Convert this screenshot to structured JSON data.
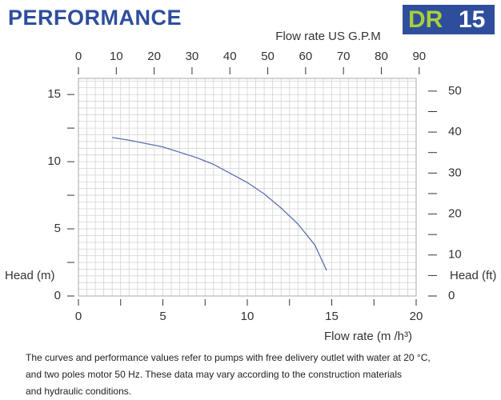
{
  "header": {
    "title": "PERFORMANCE",
    "badge_prefix": "DR",
    "badge_number": "15"
  },
  "chart_data": {
    "type": "line",
    "x": [
      2,
      3,
      5,
      7,
      8,
      10,
      11,
      12,
      13,
      14,
      14.7
    ],
    "values": [
      11.8,
      11.6,
      11.1,
      10.3,
      9.8,
      8.45,
      7.6,
      6.55,
      5.36,
      3.8,
      1.9
    ],
    "color": "#5b6fb0",
    "xlim": [
      0,
      20
    ],
    "xticks": [
      0,
      5,
      10,
      15,
      20
    ],
    "xminor": [
      2.5,
      7.5,
      12.5,
      17.5
    ],
    "ylim": [
      0,
      16.2
    ],
    "yticks": [
      0,
      5,
      10,
      15
    ],
    "yminor": [
      2.5,
      7.5,
      12.5
    ],
    "x2lim": [
      0,
      89.2
    ],
    "x2ticks": [
      0,
      10,
      20,
      30,
      40,
      50,
      60,
      70,
      80,
      90
    ],
    "y2lim": [
      0,
      53.1
    ],
    "y2ticks": [
      0,
      10,
      20,
      30,
      40,
      50
    ],
    "y2minor": [
      5,
      15,
      25,
      35,
      45
    ],
    "xlabel": "Flow rate  (m /h³)",
    "x2label": "Flow rate US  G.P.M",
    "ylabel": "Head (m)",
    "y2label": "Head (ft)",
    "grid": true,
    "grid_step": [
      0.5,
      0.5
    ]
  },
  "footnote": [
    "The curves and performance values refer to pumps with free delivery outlet with water at 20 °C,",
    "and two poles motor 50 Hz. These data may vary according to the construction materials",
    "and hydraulic conditions."
  ]
}
